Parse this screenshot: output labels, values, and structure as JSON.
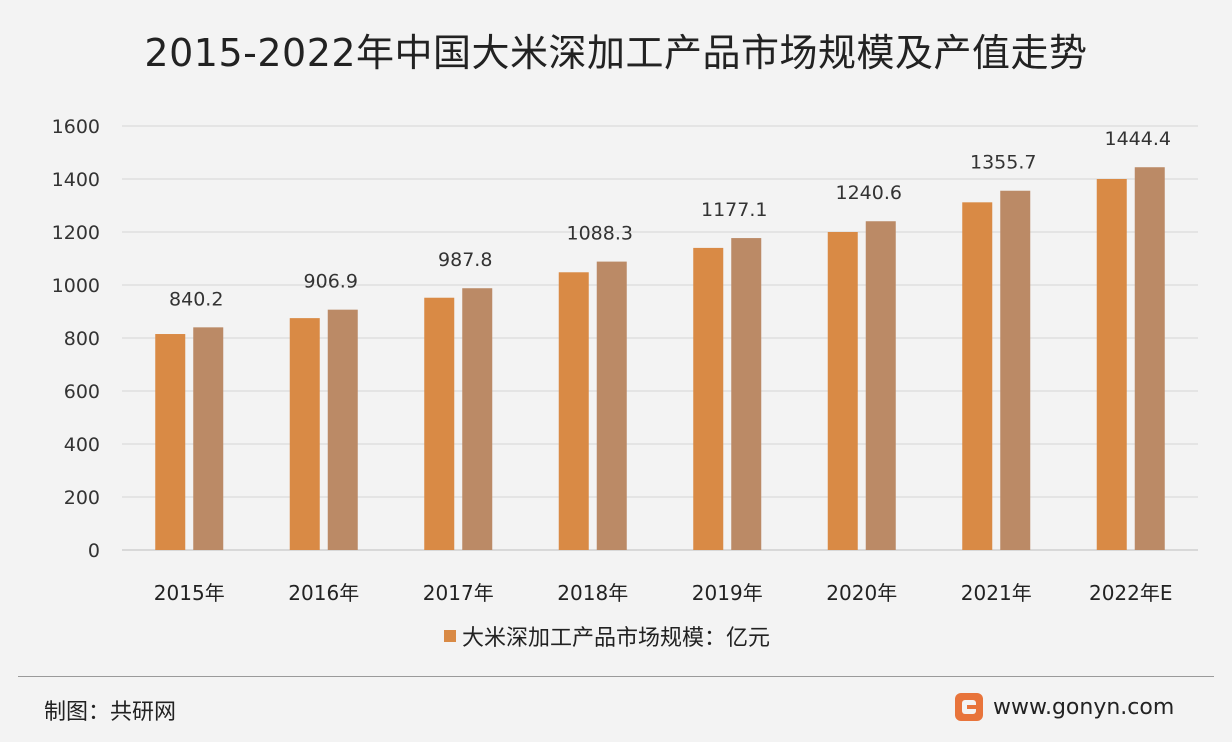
{
  "chart_data": {
    "type": "bar",
    "title": "2015-2022年中国大米深加工产品市场规模及产值走势",
    "categories": [
      "2015年",
      "2016年",
      "2017年",
      "2018年",
      "2019年",
      "2020年",
      "2021年",
      "2022年E"
    ],
    "series": [
      {
        "name": "大米深加工产品市场规模：亿元",
        "values": [
          815,
          875,
          952,
          1048,
          1140,
          1200,
          1312,
          1400
        ],
        "color": "#d98a45",
        "show_labels": false
      },
      {
        "values": [
          840.2,
          906.9,
          987.8,
          1088.3,
          1177.1,
          1240.6,
          1355.7,
          1444.4
        ],
        "color": "#bb8a66",
        "show_labels": true
      }
    ],
    "ylim": [
      0,
      1600
    ],
    "yticks": [
      0,
      200,
      400,
      600,
      800,
      1000,
      1200,
      1400,
      1600
    ],
    "grid": true,
    "legend_position": "bottom"
  },
  "footer": {
    "source": "制图：共研网",
    "site": "www.gonyn.com"
  },
  "icons": {
    "site_logo": "gonyn-logo-icon"
  },
  "colors": {
    "background": "#f3f3f3",
    "grid": "#d6d6d6"
  }
}
